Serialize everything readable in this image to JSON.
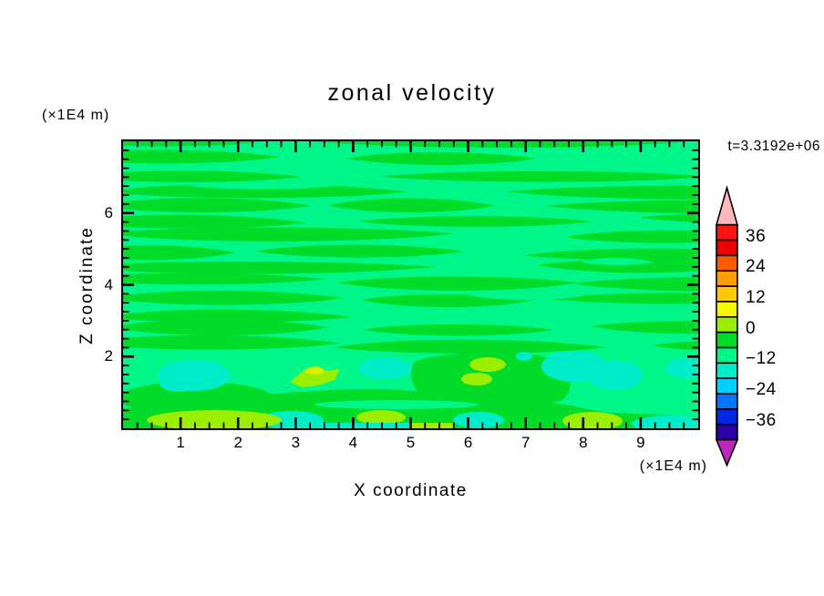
{
  "title": "zonal velocity",
  "time_label": "t=3.3192e+06",
  "x_axis": {
    "label": "X coordinate",
    "unit": "(×1E4 m)",
    "ticks": [
      "1",
      "2",
      "3",
      "4",
      "5",
      "6",
      "7",
      "8",
      "9"
    ],
    "range": [
      0,
      10
    ],
    "minor_step": 0.25
  },
  "y_axis": {
    "label": "Z coordinate",
    "unit": "(×1E4 m)",
    "ticks": [
      "2",
      "4",
      "6"
    ],
    "range": [
      0,
      8
    ],
    "minor_step": 0.25
  },
  "colorbar": {
    "labels": [
      "36",
      "24",
      "12",
      "0",
      "−12",
      "−24",
      "−36"
    ],
    "box_colors": [
      "#FB1412",
      "#F10000",
      "#FF5A00",
      "#FF9C00",
      "#FFC801",
      "#F7F700",
      "#9CEE00",
      "#00DC28",
      "#00F689",
      "#00EDC9",
      "#00CFFF",
      "#0077FF",
      "#0028E6",
      "#2B00A8"
    ],
    "arrow_top_color": "#FFB9BB",
    "arrow_bottom_color": "#BC29BC"
  },
  "chart_data": {
    "type": "heatmap",
    "title": "zonal velocity",
    "xlabel": "X coordinate (×1E4 m)",
    "ylabel": "Z coordinate (×1E4 m)",
    "xlim": [
      0,
      10
    ],
    "ylim": [
      0,
      8
    ],
    "contour_levels": [
      -42,
      -36,
      -30,
      -24,
      -18,
      -12,
      -6,
      0,
      6,
      12,
      18,
      24,
      30,
      36,
      42
    ],
    "level_colors_low_to_high": [
      "#2B00A8",
      "#0028E6",
      "#0077FF",
      "#00CFFF",
      "#00EDC9",
      "#00F689",
      "#00DC28",
      "#9CEE00",
      "#F7F700",
      "#FFC801",
      "#FF9C00",
      "#FF5A00",
      "#F10000",
      "#FB1412"
    ],
    "time": "t=3.3192e+06",
    "x_centers": [
      0.5,
      1.5,
      2.5,
      3.5,
      4.5,
      5.5,
      6.5,
      7.5,
      8.5,
      9.5
    ],
    "z_centers": [
      7.5,
      6.5,
      5.5,
      4.5,
      3.5,
      2.5,
      1.5,
      0.5
    ],
    "values": [
      [
        2,
        -2,
        2,
        -2,
        2,
        2,
        -2,
        2,
        -2,
        2
      ],
      [
        -2,
        2,
        -2,
        2,
        -2,
        2,
        2,
        -2,
        2,
        -2
      ],
      [
        2,
        -2,
        2,
        2,
        -2,
        2,
        -2,
        2,
        -2,
        2
      ],
      [
        -2,
        2,
        -2,
        2,
        2,
        -2,
        2,
        -2,
        2,
        2
      ],
      [
        2,
        2,
        -2,
        2,
        -2,
        2,
        -2,
        2,
        2,
        -2
      ],
      [
        -2,
        2,
        2,
        -2,
        2,
        -2,
        2,
        2,
        -2,
        2
      ],
      [
        2,
        -14,
        2,
        13,
        -14,
        2,
        8,
        -14,
        -14,
        2
      ],
      [
        8,
        8,
        -14,
        4,
        8,
        -14,
        4,
        2,
        8,
        8
      ]
    ],
    "note": "values estimated from fill colors; field is near 0 (alternating ±0–6 bands) in upper region with ±12–18 anomalies near the bottom boundary"
  }
}
